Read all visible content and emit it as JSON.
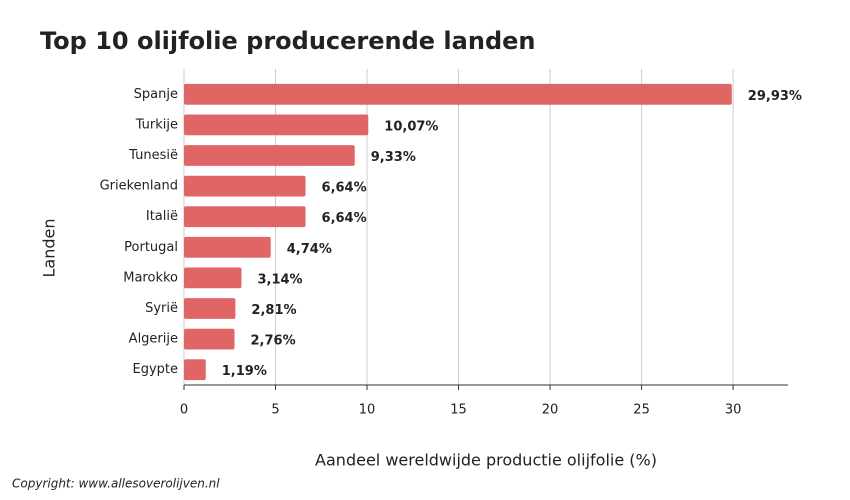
{
  "chart_data": {
    "type": "bar",
    "orientation": "horizontal",
    "title": "Top 10 olijfolie producerende landen",
    "x_label": "Aandeel wereldwijde productie olijfolie (%)",
    "y_label": "Landen",
    "categories": [
      "Spanje",
      "Turkije",
      "Tunesië",
      "Griekenland",
      "Italië",
      "Portugal",
      "Marokko",
      "Syrië",
      "Algerije",
      "Egypte"
    ],
    "values": [
      29.93,
      10.07,
      9.33,
      6.64,
      6.64,
      4.74,
      3.14,
      2.81,
      2.76,
      1.19
    ],
    "value_labels": [
      "29,93%",
      "10,07%",
      "9,33%",
      "6,64%",
      "6,64%",
      "4,74%",
      "3,14%",
      "2,81%",
      "2,76%",
      "1,19%"
    ],
    "color": "#e06666",
    "xlim": [
      0,
      33
    ],
    "xticks": [
      0,
      5,
      10,
      15,
      20,
      25,
      30
    ],
    "grid": true,
    "source": "Copyright: www.allesoverolijven.nl"
  }
}
